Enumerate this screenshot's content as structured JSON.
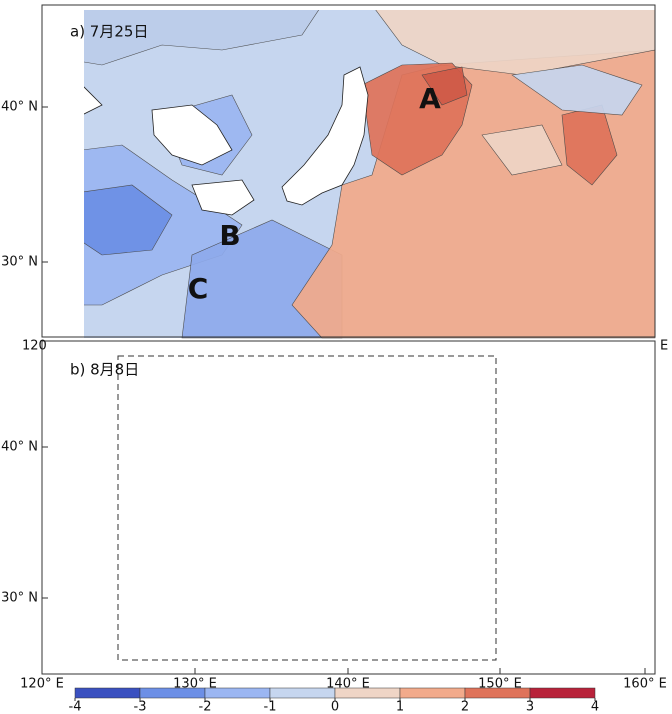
{
  "panels": [
    {
      "label": "a) 7月25日",
      "annotations": [
        "A",
        "B",
        "C"
      ]
    },
    {
      "label": "b) 8月8日"
    }
  ],
  "lat_labels": [
    "40° N",
    "30° N"
  ],
  "lon_labels": [
    "120° E",
    "130° E",
    "140° E",
    "150° E",
    "160° E"
  ],
  "between_panels": [
    "120",
    "E"
  ],
  "colorbar": {
    "ticks": [
      -4,
      -3,
      -2,
      -1,
      0,
      1,
      2,
      3,
      4
    ],
    "colors": [
      "#3a50c0",
      "#6c8fe6",
      "#9bb6f2",
      "#c6d6ef",
      "#efd5c6",
      "#f2aa8b",
      "#df735a",
      "#b8223a"
    ]
  }
}
